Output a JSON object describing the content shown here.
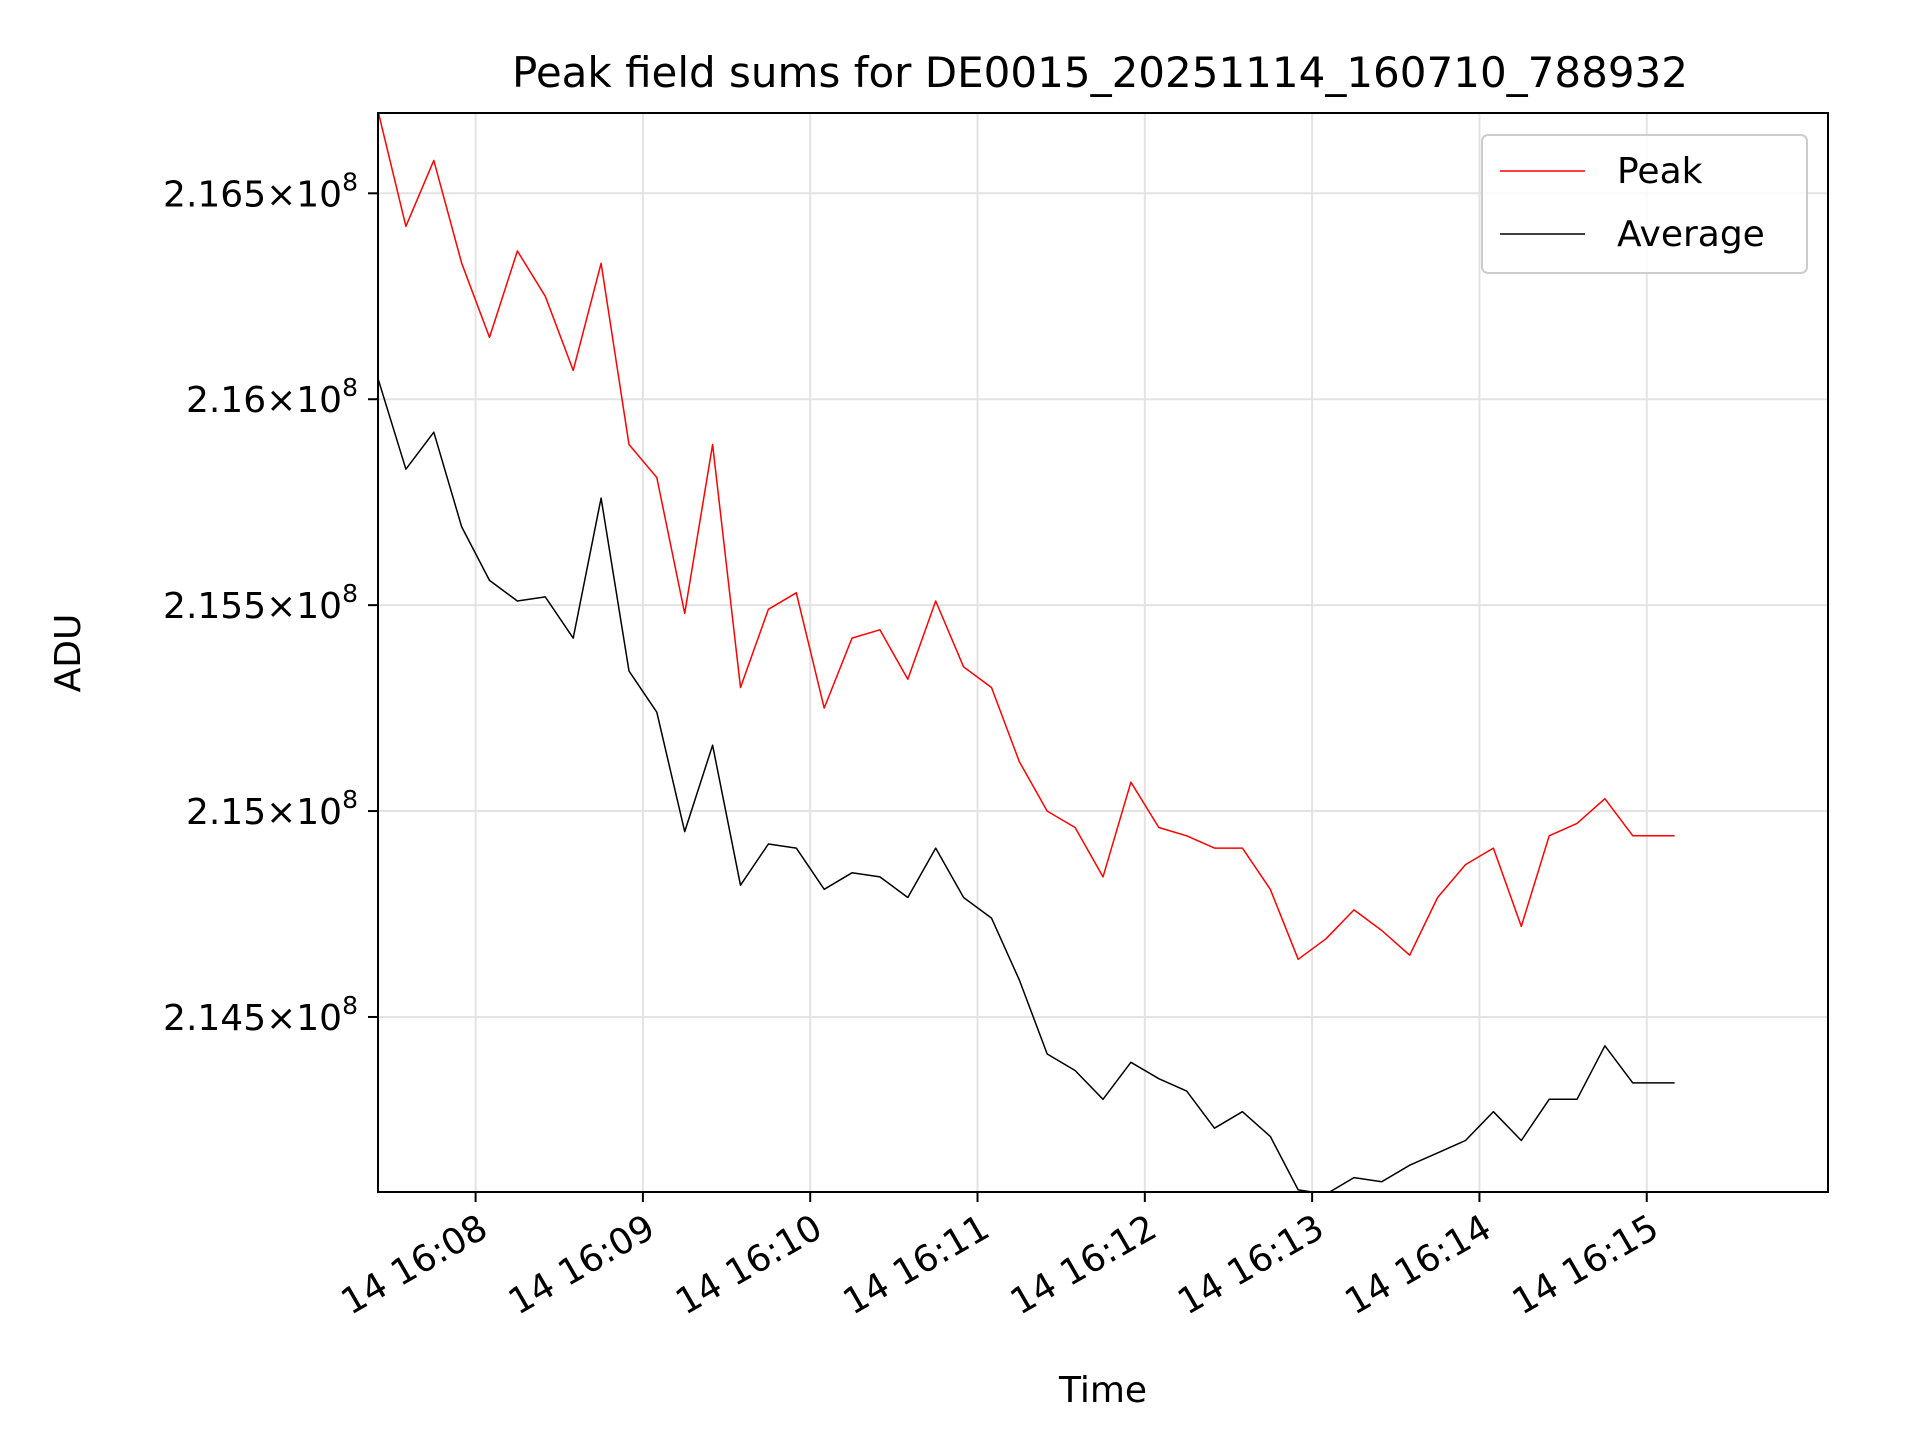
{
  "chart_data": {
    "type": "line",
    "title": "Peak field sums for DE0015_20251114_160710_788932",
    "xlabel": "Time",
    "ylabel": "ADU",
    "grid": true,
    "legend_position": "top-right",
    "colors": {
      "peak": "#ff0000",
      "average": "#000000",
      "grid": "#e3e3e3"
    },
    "x_unit": "seconds since 16:07:00",
    "xlim": [
      25,
      545
    ],
    "ylim": [
      214075000,
      216695000
    ],
    "x_ticks": [
      {
        "value": 60,
        "label": "14 16:08"
      },
      {
        "value": 120,
        "label": "14 16:09"
      },
      {
        "value": 180,
        "label": "14 16:10"
      },
      {
        "value": 240,
        "label": "14 16:11"
      },
      {
        "value": 300,
        "label": "14 16:12"
      },
      {
        "value": 360,
        "label": "14 16:13"
      },
      {
        "value": 420,
        "label": "14 16:14"
      },
      {
        "value": 480,
        "label": "14 16:15"
      }
    ],
    "y_ticks": [
      {
        "value": 214500000,
        "mantissa": "2.145"
      },
      {
        "value": 215000000,
        "mantissa": "2.15"
      },
      {
        "value": 215500000,
        "mantissa": "2.155"
      },
      {
        "value": 216000000,
        "mantissa": "2.16"
      },
      {
        "value": 216500000,
        "mantissa": "2.165"
      }
    ],
    "y_tick_format": {
      "times": "×",
      "base": "10",
      "exponent": "8"
    },
    "x": [
      25,
      35,
      45,
      55,
      65,
      75,
      85,
      95,
      105,
      115,
      125,
      135,
      145,
      155,
      165,
      175,
      185,
      195,
      205,
      215,
      225,
      235,
      245,
      255,
      265,
      275,
      285,
      295,
      305,
      315,
      325,
      335,
      345,
      355,
      365,
      375,
      385,
      395,
      405,
      415,
      425,
      435,
      445,
      455,
      465,
      475,
      485,
      490
    ],
    "series": [
      {
        "name": "Peak",
        "values": [
          216700000,
          216420000,
          216580000,
          216330000,
          216150000,
          216360000,
          216250000,
          216070000,
          216330000,
          215890000,
          215810000,
          215480000,
          215890000,
          215300000,
          215490000,
          215530000,
          215250000,
          215420000,
          215440000,
          215320000,
          215510000,
          215350000,
          215300000,
          215120000,
          215000000,
          214960000,
          214840000,
          215070000,
          214960000,
          214940000,
          214910000,
          214910000,
          214810000,
          214640000,
          214690000,
          214760000,
          214710000,
          214650000,
          214790000,
          214870000,
          214910000,
          214720000,
          214940000,
          214970000,
          215030000,
          214940000,
          214940000,
          214940000
        ]
      },
      {
        "name": "Average",
        "values": [
          216050000,
          215830000,
          215920000,
          215690000,
          215560000,
          215510000,
          215520000,
          215420000,
          215760000,
          215340000,
          215240000,
          214950000,
          215160000,
          214820000,
          214920000,
          214910000,
          214810000,
          214850000,
          214840000,
          214790000,
          214910000,
          214790000,
          214740000,
          214590000,
          214410000,
          214370000,
          214300000,
          214390000,
          214350000,
          214320000,
          214230000,
          214270000,
          214210000,
          214080000,
          214070000,
          214110000,
          214100000,
          214140000,
          214170000,
          214200000,
          214270000,
          214200000,
          214300000,
          214300000,
          214430000,
          214340000,
          214340000,
          214340000
        ]
      }
    ]
  }
}
